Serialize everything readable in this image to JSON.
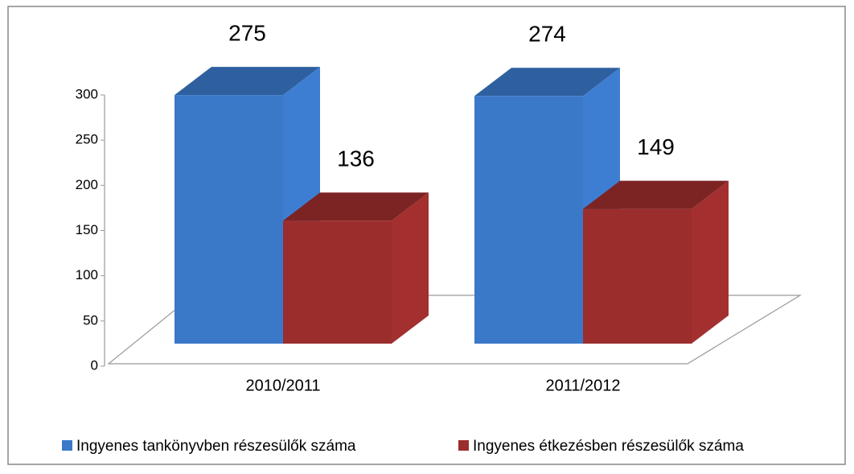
{
  "chart_data": {
    "type": "bar3d",
    "categories": [
      "2010/2011",
      "2011/2012"
    ],
    "series": [
      {
        "name": "Ingyenes tankönyvben részesülők száma",
        "color": "#3a78c8",
        "values": [
          275,
          274
        ]
      },
      {
        "name": "Ingyenes étkezésben részesülők száma",
        "color": "#9b2d2d",
        "values": [
          136,
          149
        ]
      }
    ],
    "ylim": [
      0,
      300
    ],
    "yticks": [
      0,
      50,
      100,
      150,
      200,
      250,
      300
    ],
    "legend": "bottom"
  }
}
